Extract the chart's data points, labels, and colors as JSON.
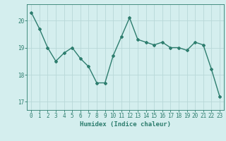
{
  "x": [
    0,
    1,
    2,
    3,
    4,
    5,
    6,
    7,
    8,
    9,
    10,
    11,
    12,
    13,
    14,
    15,
    16,
    17,
    18,
    19,
    20,
    21,
    22,
    23
  ],
  "y": [
    20.3,
    19.7,
    19.0,
    18.5,
    18.8,
    19.0,
    18.6,
    18.3,
    17.7,
    17.7,
    18.7,
    19.4,
    20.1,
    19.3,
    19.2,
    19.1,
    19.2,
    19.0,
    19.0,
    18.9,
    19.2,
    19.1,
    18.2,
    17.2
  ],
  "line_color": "#2d7d6e",
  "marker": "D",
  "marker_size": 2,
  "bg_color": "#d4eeee",
  "grid_color": "#b8d8d8",
  "xlabel": "Humidex (Indice chaleur)",
  "ylim": [
    16.7,
    20.6
  ],
  "xlim": [
    -0.5,
    23.5
  ],
  "yticks": [
    17,
    18,
    19,
    20
  ],
  "xticks": [
    0,
    1,
    2,
    3,
    4,
    5,
    6,
    7,
    8,
    9,
    10,
    11,
    12,
    13,
    14,
    15,
    16,
    17,
    18,
    19,
    20,
    21,
    22,
    23
  ],
  "tick_color": "#2d7d6e",
  "xlabel_fontsize": 6.5,
  "tick_fontsize": 5.5,
  "axis_color": "#2d7d6e",
  "linewidth": 1.0
}
